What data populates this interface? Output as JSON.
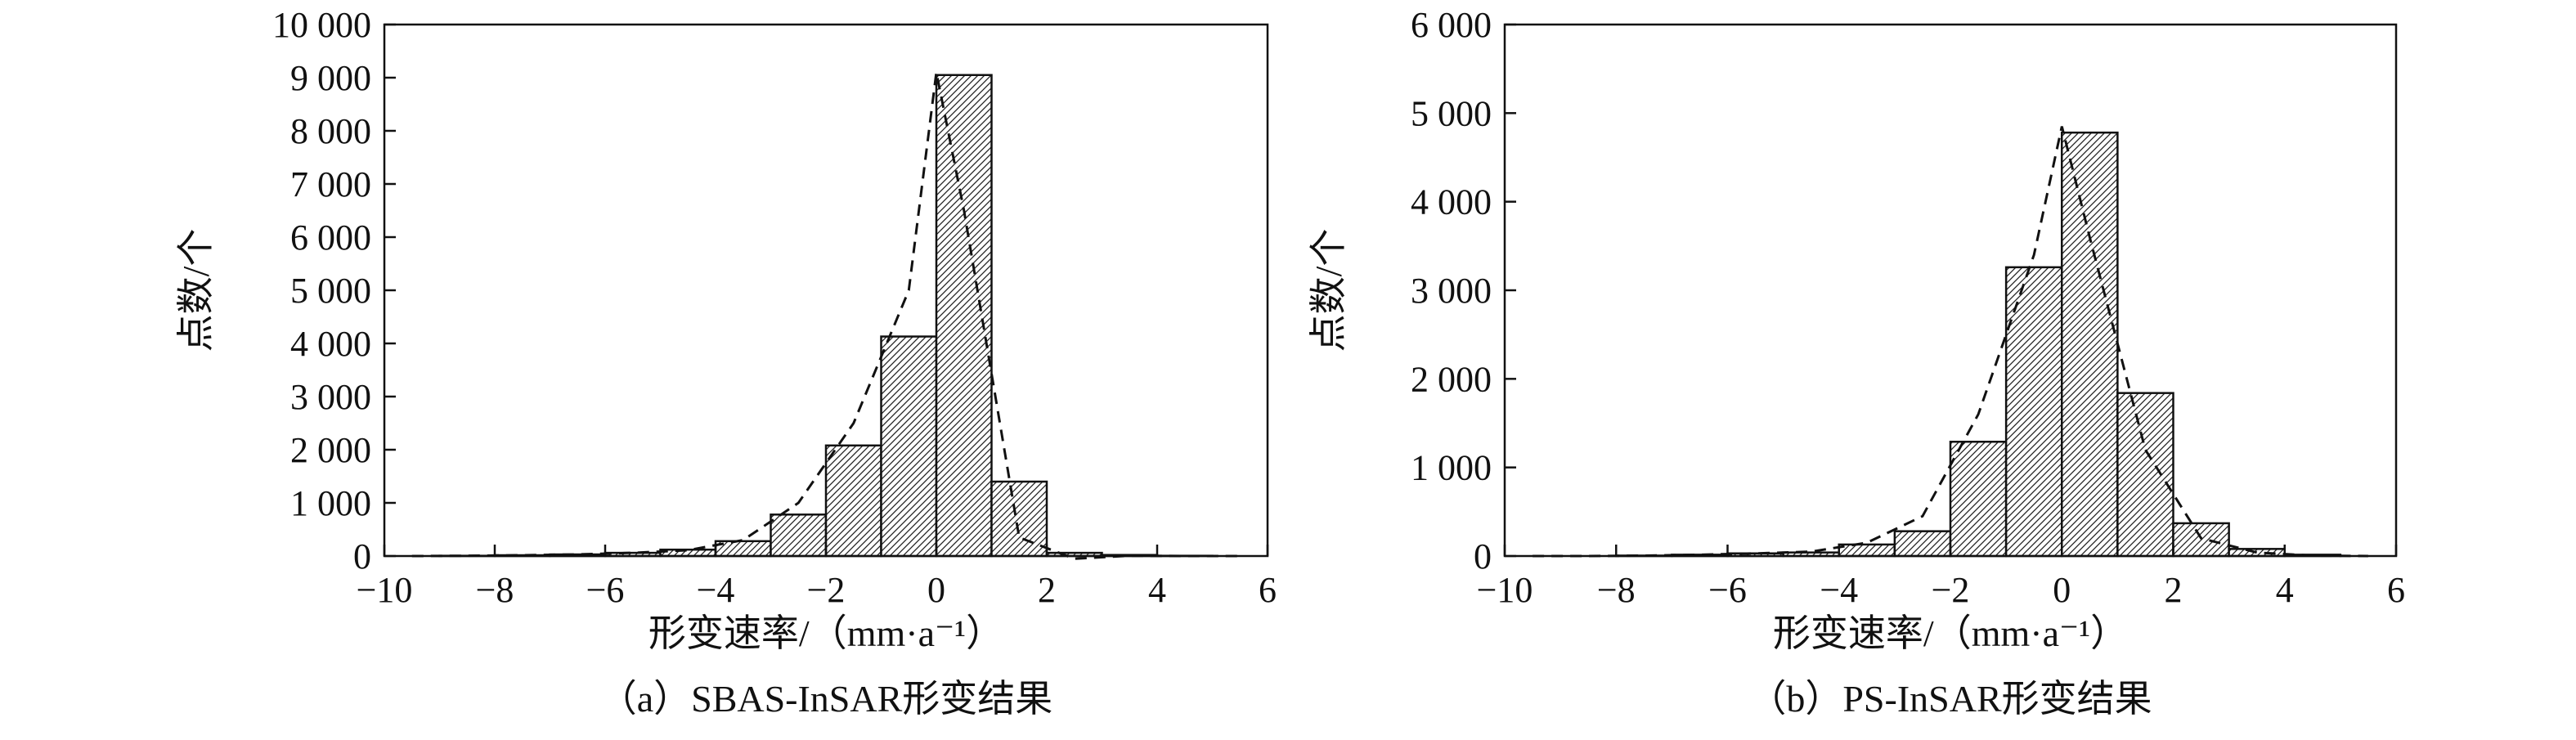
{
  "chart_data": [
    {
      "type": "bar",
      "subtitle": "（a）SBAS-InSAR形变结果",
      "xlabel": "形变速率/（mm·a⁻¹）",
      "ylabel": "点数/个",
      "xlim": [
        -10,
        6
      ],
      "ylim": [
        0,
        10000
      ],
      "xticks": [
        "−10",
        "−8",
        "−6",
        "−4",
        "−2",
        "0",
        "2",
        "4",
        "6"
      ],
      "yticks": [
        "0",
        "1 000",
        "2 000",
        "3 000",
        "4 000",
        "5 000",
        "6 000",
        "7 000",
        "8 000",
        "9 000",
        "10 000"
      ],
      "bin_edges": [
        -10,
        -9,
        -8,
        -7,
        -6,
        -5,
        -4,
        -3,
        -2,
        -1,
        0,
        1,
        2,
        3,
        4,
        5,
        6
      ],
      "values": [
        0,
        5,
        15,
        30,
        60,
        120,
        280,
        780,
        2080,
        4130,
        9050,
        1400,
        60,
        20,
        5,
        0
      ],
      "fit_curve": {
        "style": "dashed",
        "x": [
          -9.5,
          -8.5,
          -7.5,
          -6.5,
          -5.5,
          -4.5,
          -3.5,
          -2.5,
          -1.5,
          -0.5,
          0,
          0.5,
          1.5,
          2.5,
          3.5,
          4.5,
          5.5
        ],
        "y": [
          0,
          5,
          15,
          30,
          60,
          110,
          300,
          1000,
          2500,
          5000,
          9100,
          6500,
          350,
          -50,
          5,
          0,
          0
        ]
      },
      "grid": false,
      "legend": "none",
      "color": "#111111"
    },
    {
      "type": "bar",
      "subtitle": "（b）PS-InSAR形变结果",
      "xlabel": "形变速率/（mm·a⁻¹）",
      "ylabel": "点数/个",
      "xlim": [
        -10,
        6
      ],
      "ylim": [
        0,
        6000
      ],
      "xticks": [
        "−10",
        "−8",
        "−6",
        "−4",
        "−2",
        "0",
        "2",
        "4",
        "6"
      ],
      "yticks": [
        "0",
        "1 000",
        "2 000",
        "3 000",
        "4 000",
        "5 000",
        "6 000"
      ],
      "bin_edges": [
        -10,
        -9,
        -8,
        -7,
        -6,
        -5,
        -4,
        -3,
        -2,
        -1,
        0,
        1,
        2,
        3,
        4,
        5,
        6
      ],
      "values": [
        0,
        0,
        5,
        15,
        30,
        40,
        130,
        280,
        1290,
        3260,
        4780,
        1840,
        370,
        80,
        15,
        0
      ],
      "fit_curve": {
        "style": "dashed",
        "x": [
          -9.5,
          -8.5,
          -7.5,
          -6.5,
          -5.5,
          -4.5,
          -3.5,
          -2.5,
          -1.5,
          -0.5,
          0,
          0.5,
          1.5,
          2.5,
          3.5,
          4.5,
          5.5
        ],
        "y": [
          0,
          0,
          5,
          15,
          30,
          50,
          150,
          450,
          1600,
          3400,
          4850,
          3600,
          1200,
          200,
          40,
          5,
          0
        ]
      },
      "grid": false,
      "legend": "none",
      "color": "#111111"
    }
  ]
}
